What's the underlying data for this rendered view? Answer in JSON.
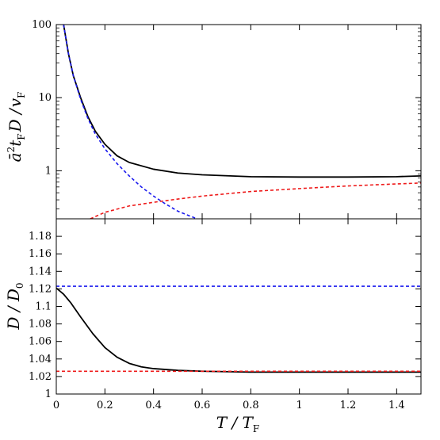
{
  "chart_data": [
    {
      "type": "line",
      "panel": "top",
      "ylabel": "ā²t_F D / v_F",
      "ylabel_parts": {
        "a": "ā",
        "sup": "2",
        "t": "t",
        "tsub": "F",
        "d": "D /",
        "v": "v",
        "vsub": "F"
      },
      "y_scale": "log",
      "xlim": [
        0,
        1.5
      ],
      "ylim": [
        0.22,
        100
      ],
      "y_ticks": [
        {
          "value": 1,
          "label": "1"
        },
        {
          "value": 10,
          "label": "10"
        },
        {
          "value": 100,
          "label": "100"
        }
      ],
      "series": [
        {
          "style": "solid",
          "color": "#000000",
          "x": [
            0.03,
            0.05,
            0.07,
            0.1,
            0.13,
            0.16,
            0.2,
            0.25,
            0.3,
            0.4,
            0.5,
            0.6,
            0.8,
            1.0,
            1.2,
            1.4,
            1.5
          ],
          "y": [
            100,
            40,
            20,
            10,
            5.5,
            3.5,
            2.3,
            1.6,
            1.3,
            1.05,
            0.93,
            0.88,
            0.83,
            0.82,
            0.82,
            0.83,
            0.85
          ]
        },
        {
          "style": "dashed",
          "color": "#1a1aee",
          "x": [
            0.03,
            0.05,
            0.07,
            0.1,
            0.13,
            0.16,
            0.2,
            0.25,
            0.3,
            0.35,
            0.4,
            0.45,
            0.5,
            0.55,
            0.58
          ],
          "y": [
            100,
            40,
            20,
            9.5,
            5.2,
            3.2,
            2.0,
            1.25,
            0.85,
            0.6,
            0.45,
            0.35,
            0.28,
            0.24,
            0.22
          ]
        },
        {
          "style": "dashed",
          "color": "#ee1a1a",
          "x": [
            0.14,
            0.2,
            0.3,
            0.4,
            0.5,
            0.6,
            0.8,
            1.0,
            1.2,
            1.4,
            1.5
          ],
          "y": [
            0.22,
            0.27,
            0.33,
            0.37,
            0.41,
            0.45,
            0.52,
            0.57,
            0.62,
            0.66,
            0.68
          ]
        }
      ]
    },
    {
      "type": "line",
      "panel": "bottom",
      "ylabel": "D / D_0",
      "ylabel_parts": {
        "d": "D / D",
        "sub": "0"
      },
      "xlabel": "T / T_F",
      "xlabel_parts": {
        "t": "T / T",
        "sub": "F"
      },
      "xlim": [
        0,
        1.5
      ],
      "ylim": [
        1.0,
        1.2
      ],
      "x_ticks": [
        {
          "value": 0,
          "label": "0"
        },
        {
          "value": 0.2,
          "label": "0.2"
        },
        {
          "value": 0.4,
          "label": "0.4"
        },
        {
          "value": 0.6,
          "label": "0.6"
        },
        {
          "value": 0.8,
          "label": "0.8"
        },
        {
          "value": 1.0,
          "label": "1"
        },
        {
          "value": 1.2,
          "label": "1.2"
        },
        {
          "value": 1.4,
          "label": "1.4"
        }
      ],
      "y_ticks": [
        {
          "value": 1.0,
          "label": "1"
        },
        {
          "value": 1.02,
          "label": "1.02"
        },
        {
          "value": 1.04,
          "label": "1.04"
        },
        {
          "value": 1.06,
          "label": "1.06"
        },
        {
          "value": 1.08,
          "label": "1.08"
        },
        {
          "value": 1.1,
          "label": "1.1"
        },
        {
          "value": 1.12,
          "label": "1.12"
        },
        {
          "value": 1.14,
          "label": "1.14"
        },
        {
          "value": 1.16,
          "label": "1.16"
        },
        {
          "value": 1.18,
          "label": "1.18"
        }
      ],
      "series": [
        {
          "style": "solid",
          "color": "#000000",
          "x": [
            0,
            0.03,
            0.06,
            0.1,
            0.15,
            0.2,
            0.25,
            0.3,
            0.35,
            0.4,
            0.5,
            0.6,
            0.8,
            1.0,
            1.2,
            1.5
          ],
          "y": [
            1.121,
            1.114,
            1.104,
            1.088,
            1.069,
            1.053,
            1.042,
            1.035,
            1.031,
            1.029,
            1.027,
            1.026,
            1.025,
            1.025,
            1.025,
            1.025
          ]
        },
        {
          "style": "dashed",
          "color": "#1a1aee",
          "x": [
            0,
            1.5
          ],
          "y": [
            1.123,
            1.123
          ]
        },
        {
          "style": "dashed",
          "color": "#ee1a1a",
          "x": [
            0,
            1.5
          ],
          "y": [
            1.026,
            1.026
          ]
        }
      ]
    }
  ]
}
